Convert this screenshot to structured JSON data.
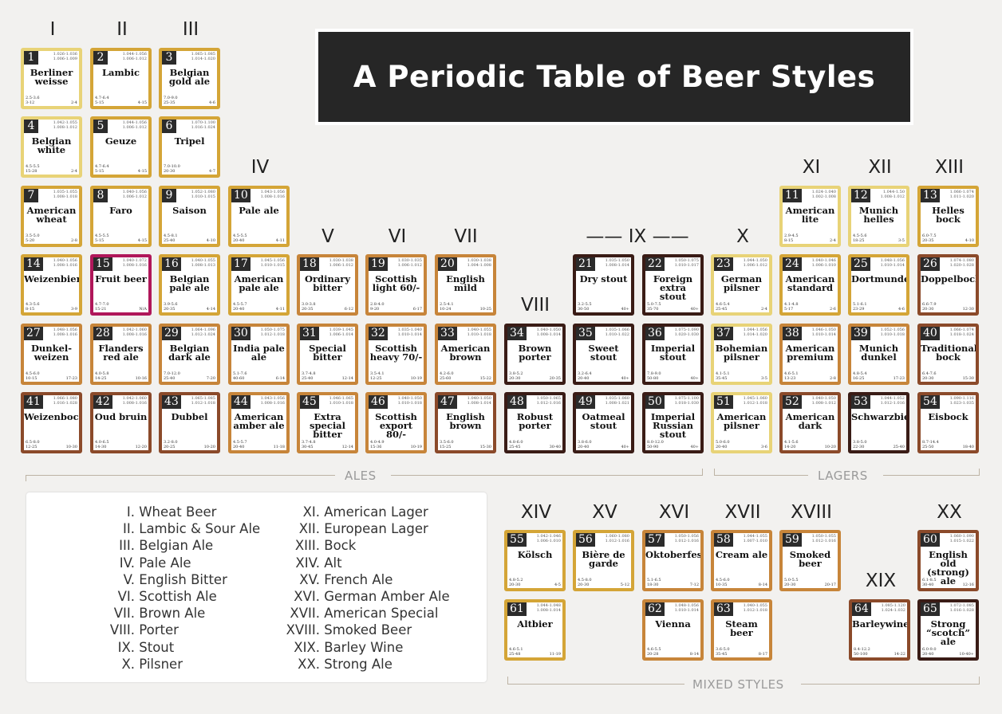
{
  "title": "A Periodic Table of Beer Styles",
  "group_headers": {
    "g1": "I",
    "g2": "II",
    "g3": "III",
    "g4": "IV",
    "g5": "V",
    "g6": "VI",
    "g7": "VII",
    "g8": "VIII",
    "g9": "—— IX ——",
    "g10": "X",
    "g11": "XI",
    "g12": "XII",
    "g13": "XIII",
    "g14": "XIV",
    "g15": "XV",
    "g16": "XVI",
    "g17": "XVII",
    "g18": "XVIII",
    "g19": "XIX",
    "g20": "XX"
  },
  "section_labels": {
    "ales": "ALES",
    "lagers": "LAGERS",
    "mixed": "MIXED STYLES"
  },
  "colors": {
    "pale": "#e8d377",
    "gold": "#d4a537",
    "amber": "#c7853a",
    "brown": "#8b4a2a",
    "dark": "#3a1c16",
    "fruit": "#b0175a"
  },
  "legend": {
    "col1": [
      "I. Wheat Beer",
      "II. Lambic & Sour Ale",
      "III. Belgian Ale",
      "IV. Pale Ale",
      "V. English Bitter",
      "VI. Scottish Ale",
      "VII. Brown Ale",
      "VIII. Porter",
      "IX. Stout",
      "X. Pilsner"
    ],
    "col2": [
      "XI. American Lager",
      "XII. European Lager",
      "XIII. Bock",
      "XIV. Alt",
      "XV. French Ale",
      "XVI. German Amber Ale",
      "XVII. American Special",
      "XVIII. Smoked Beer",
      "XIX. Barley Wine",
      "XX. Strong Ale"
    ]
  },
  "elements": [
    {
      "n": "1",
      "name": "Berliner weisse",
      "og": "1.026-1.036",
      "fg": "1.006-1.009",
      "abv": "2.5-3.6",
      "ibu": "3-12",
      "srm": "2-4",
      "c": "pale"
    },
    {
      "n": "2",
      "name": "Lambic",
      "og": "1.044-1.056",
      "fg": "1.006-1.012",
      "abv": "4.7-6.4",
      "ibu": "5-15",
      "srm": "4-15",
      "c": "gold"
    },
    {
      "n": "3",
      "name": "Belgian gold ale",
      "og": "1.065-1.085",
      "fg": "1.014-1.020",
      "abv": "7.0-9.0",
      "ibu": "25-35",
      "srm": "4-6",
      "c": "gold"
    },
    {
      "n": "4",
      "name": "Belgian white",
      "og": "1.042-1.055",
      "fg": "1.008-1.012",
      "abv": "4.5-5.5",
      "ibu": "15-28",
      "srm": "2-4",
      "c": "pale"
    },
    {
      "n": "5",
      "name": "Geuze",
      "og": "1.044-1.056",
      "fg": "1.006-1.012",
      "abv": "4.7-6.4",
      "ibu": "5-15",
      "srm": "4-15",
      "c": "gold"
    },
    {
      "n": "6",
      "name": "Tripel",
      "og": "1.070-1.100",
      "fg": "1.016-1.024",
      "abv": "7.0-10.0",
      "ibu": "20-30",
      "srm": "4-7",
      "c": "gold"
    },
    {
      "n": "7",
      "name": "American wheat",
      "og": "1.035-1.055",
      "fg": "1.008-1.018",
      "abv": "3.5-5.0",
      "ibu": "5-20",
      "srm": "2-8",
      "c": "gold"
    },
    {
      "n": "8",
      "name": "Faro",
      "og": "1.040-1.056",
      "fg": "1.006-1.012",
      "abv": "4.5-5.5",
      "ibu": "5-15",
      "srm": "4-15",
      "c": "gold"
    },
    {
      "n": "9",
      "name": "Saison",
      "og": "1.052-1.080",
      "fg": "1.010-1.015",
      "abv": "4.5-8.1",
      "ibu": "25-40",
      "srm": "4-10",
      "c": "gold"
    },
    {
      "n": "10",
      "name": "Pale ale",
      "og": "1.043-1.056",
      "fg": "1.008-1.016",
      "abv": "4.5-5.5",
      "ibu": "20-40",
      "srm": "4-11",
      "c": "gold"
    },
    {
      "n": "11",
      "name": "American lite",
      "og": "1.024-1.040",
      "fg": "1.002-1.008",
      "abv": "2.9-4.5",
      "ibu": "8-15",
      "srm": "2-4",
      "c": "pale"
    },
    {
      "n": "12",
      "name": "Munich helles",
      "og": "1.044-1.50",
      "fg": "1.008-1.012",
      "abv": "4.5-5.6",
      "ibu": "18-25",
      "srm": "3-5",
      "c": "pale"
    },
    {
      "n": "13",
      "name": "Helles bock",
      "og": "1.066-1.074",
      "fg": "1.011-1.020",
      "abv": "6.0-7.5",
      "ibu": "20-35",
      "srm": "4-10",
      "c": "gold"
    },
    {
      "n": "14",
      "name": "Weizenbier",
      "og": "1.040-1.056",
      "fg": "1.008-1.016",
      "abv": "4.3-5.6",
      "ibu": "8-15",
      "srm": "3-9",
      "c": "gold"
    },
    {
      "n": "15",
      "name": "Fruit beer",
      "og": "1.040-1.072",
      "fg": "1.008-1.016",
      "abv": "4.7-7.0",
      "ibu": "15-21",
      "srm": "N/A",
      "c": "fruit"
    },
    {
      "n": "16",
      "name": "Belgian pale ale",
      "og": "1.040-1.055",
      "fg": "1.008-1.013",
      "abv": "3.9-5.6",
      "ibu": "20-35",
      "srm": "4-14",
      "c": "gold"
    },
    {
      "n": "17",
      "name": "American pale ale",
      "og": "1.045-1.056",
      "fg": "1.010-1.015",
      "abv": "4.5-5.7",
      "ibu": "20-40",
      "srm": "4-11",
      "c": "gold"
    },
    {
      "n": "18",
      "name": "Ordinary bitter",
      "og": "1.030-1.038",
      "fg": "1.006-1.012",
      "abv": "3.0-3.8",
      "ibu": "20-35",
      "srm": "6-12",
      "c": "amber"
    },
    {
      "n": "19",
      "name": "Scottish light 60/-",
      "og": "1.030-1.035",
      "fg": "1.006-1.012",
      "abv": "2.8-4.0",
      "ibu": "9-20",
      "srm": "6-17",
      "c": "amber"
    },
    {
      "n": "20",
      "name": "English mild",
      "og": "1.030-1.038",
      "fg": "1.004-1.008",
      "abv": "2.5-4.1",
      "ibu": "10-24",
      "srm": "10-25",
      "c": "amber"
    },
    {
      "n": "21",
      "name": "Dry stout",
      "og": "1.035-1.050",
      "fg": "1.008-1.014",
      "abv": "3.2-5.5",
      "ibu": "30-50",
      "srm": "40+",
      "c": "dark"
    },
    {
      "n": "22",
      "name": "Foreign extra stout",
      "og": "1.050-1.075",
      "fg": "1.010-1.017",
      "abv": "5.0-7.5",
      "ibu": "35-70",
      "srm": "40+",
      "c": "dark"
    },
    {
      "n": "23",
      "name": "German pilsner",
      "og": "1.044-1.050",
      "fg": "1.006-1.012",
      "abv": "4.6-5.4",
      "ibu": "25-45",
      "srm": "2-4",
      "c": "pale"
    },
    {
      "n": "24",
      "name": "American standard",
      "og": "1.040-1.046",
      "fg": "1.006-1.010",
      "abv": "4.1-4.8",
      "ibu": "5-17",
      "srm": "2-6",
      "c": "gold"
    },
    {
      "n": "25",
      "name": "Dortmunder",
      "og": "1.048-1.056",
      "fg": "1.010-1.014",
      "abv": "5.1-6.1",
      "ibu": "23-29",
      "srm": "4-6",
      "c": "gold"
    },
    {
      "n": "26",
      "name": "Doppelbock",
      "og": "1.074-1.080",
      "fg": "1.020-1.028",
      "abv": "6.6-7.9",
      "ibu": "20-30",
      "srm": "12-30",
      "c": "brown"
    },
    {
      "n": "27",
      "name": "Dunkel-weizen",
      "og": "1.048-1.056",
      "fg": "1.008-1.016",
      "abv": "4.5-6.0",
      "ibu": "10-15",
      "srm": "17-23",
      "c": "amber"
    },
    {
      "n": "28",
      "name": "Flanders red ale",
      "og": "1.042-1.060",
      "fg": "1.008-1.016",
      "abv": "4.0-5.8",
      "ibu": "14-25",
      "srm": "10-16",
      "c": "amber"
    },
    {
      "n": "29",
      "name": "Belgian dark ale",
      "og": "1.064-1.096",
      "fg": "1.012-1.024",
      "abv": "7.0-12.0",
      "ibu": "25-40",
      "srm": "7-20",
      "c": "amber"
    },
    {
      "n": "30",
      "name": "India pale ale",
      "og": "1.050-1.075",
      "fg": "1.012-1.018",
      "abv": "5.1-7.6",
      "ibu": "40-60",
      "srm": "6-14",
      "c": "amber"
    },
    {
      "n": "31",
      "name": "Special bitter",
      "og": "1.039-1.045",
      "fg": "1.006-1.014",
      "abv": "3.7-4.8",
      "ibu": "25-40",
      "srm": "12-14",
      "c": "amber"
    },
    {
      "n": "32",
      "name": "Scottish heavy 70/-",
      "og": "1.035-1.040",
      "fg": "1.010-1.014",
      "abv": "3.5-4.1",
      "ibu": "12-25",
      "srm": "10-19",
      "c": "amber"
    },
    {
      "n": "33",
      "name": "American brown",
      "og": "1.040-1.055",
      "fg": "1.010-1.018",
      "abv": "4.2-6.0",
      "ibu": "25-60",
      "srm": "15-22",
      "c": "amber"
    },
    {
      "n": "34",
      "name": "Brown porter",
      "og": "1.040-1.050",
      "fg": "1.008-1.014",
      "abv": "3.8-5.2",
      "ibu": "20-30",
      "srm": "20-35",
      "c": "dark"
    },
    {
      "n": "35",
      "name": "Sweet stout",
      "og": "1.035-1.066",
      "fg": "1.010-1.022",
      "abv": "3.2-6.4",
      "ibu": "20-40",
      "srm": "40+",
      "c": "dark"
    },
    {
      "n": "36",
      "name": "Imperial stout",
      "og": "1.075-1.090",
      "fg": "1.020-1.030",
      "abv": "7.8-9.0",
      "ibu": "50-80",
      "srm": "40+",
      "c": "dark"
    },
    {
      "n": "37",
      "name": "Bohemian pilsner",
      "og": "1.044-1.056",
      "fg": "1.014-1.020",
      "abv": "4.1-5.1",
      "ibu": "35-45",
      "srm": "3-5",
      "c": "pale"
    },
    {
      "n": "38",
      "name": "American premium",
      "og": "1.046-1.050",
      "fg": "1.010-1.014",
      "abv": "4.6-5.1",
      "ibu": "13-23",
      "srm": "2-8",
      "c": "amber"
    },
    {
      "n": "39",
      "name": "Munich dunkel",
      "og": "1.052-1.056",
      "fg": "1.010-1.018",
      "abv": "4.8-5.4",
      "ibu": "16-25",
      "srm": "17-23",
      "c": "amber"
    },
    {
      "n": "40",
      "name": "Traditional bock",
      "og": "1.066-1.074",
      "fg": "1.018-1.024",
      "abv": "6.4-7.6",
      "ibu": "20-30",
      "srm": "15-30",
      "c": "brown"
    },
    {
      "n": "41",
      "name": "Weizenbock",
      "og": "1.066-1.080",
      "fg": "1.016-1.028",
      "abv": "6.5-8.0",
      "ibu": "12-25",
      "srm": "10-30",
      "c": "brown"
    },
    {
      "n": "42",
      "name": "Oud bruin",
      "og": "1.042-1.060",
      "fg": "1.008-1.016",
      "abv": "4.0-6.5",
      "ibu": "14-30",
      "srm": "12-20",
      "c": "brown"
    },
    {
      "n": "43",
      "name": "Dubbel",
      "og": "1.065-1.085",
      "fg": "1.012-1.018",
      "abv": "3.2-8.0",
      "ibu": "20-25",
      "srm": "10-20",
      "c": "brown"
    },
    {
      "n": "44",
      "name": "American amber ale",
      "og": "1.043-1.056",
      "fg": "1.008-1.016",
      "abv": "4.5-5.7",
      "ibu": "20-40",
      "srm": "11-18",
      "c": "amber"
    },
    {
      "n": "45",
      "name": "Extra special bitter",
      "og": "1.046-1.065",
      "fg": "1.010-1.018",
      "abv": "3.7-4.8",
      "ibu": "30-45",
      "srm": "12-14",
      "c": "amber"
    },
    {
      "n": "46",
      "name": "Scottish export 80/-",
      "og": "1.040-1.050",
      "fg": "1.010-1.018",
      "abv": "4.0-4.9",
      "ibu": "15-36",
      "srm": "10-19",
      "c": "amber"
    },
    {
      "n": "47",
      "name": "English brown",
      "og": "1.040-1.050",
      "fg": "1.008-1.014",
      "abv": "3.5-6.0",
      "ibu": "15-25",
      "srm": "15-30",
      "c": "brown"
    },
    {
      "n": "48",
      "name": "Robust porter",
      "og": "1.050-1.065",
      "fg": "1.012-1.016",
      "abv": "4.8-6.0",
      "ibu": "25-45",
      "srm": "30-40",
      "c": "dark"
    },
    {
      "n": "49",
      "name": "Oatmeal stout",
      "og": "1.035-1.060",
      "fg": "1.008-1.021",
      "abv": "3.8-6.0",
      "ibu": "20-40",
      "srm": "40+",
      "c": "dark"
    },
    {
      "n": "50",
      "name": "Imperial Russian stout",
      "og": "1.075-1.100",
      "fg": "1.018-1.030",
      "abv": "8.0-12.0",
      "ibu": "50-90",
      "srm": "40+",
      "c": "dark"
    },
    {
      "n": "51",
      "name": "American pilsner",
      "og": "1.045-1.060",
      "fg": "1.012-1.018",
      "abv": "5.0-6.0",
      "ibu": "20-40",
      "srm": "3-6",
      "c": "pale"
    },
    {
      "n": "52",
      "name": "American dark",
      "og": "1.040-1.050",
      "fg": "1.008-1.012",
      "abv": "4.1-5.6",
      "ibu": "14-20",
      "srm": "10-20",
      "c": "brown"
    },
    {
      "n": "53",
      "name": "Schwarzbier",
      "og": "1.044-1.052",
      "fg": "1.012-1.016",
      "abv": "3.8-5.0",
      "ibu": "22-30",
      "srm": "25-40",
      "c": "dark"
    },
    {
      "n": "54",
      "name": "Eisbock",
      "og": "1.090-1.116",
      "fg": "1.023-1.035",
      "abv": "8.7-14.4",
      "ibu": "25-50",
      "srm": "18-40",
      "c": "brown"
    },
    {
      "n": "55",
      "name": "Kölsch",
      "og": "1.042-1.046",
      "fg": "1.006-1.010",
      "abv": "4.8-5.2",
      "ibu": "20-30",
      "srm": "4-5",
      "c": "gold"
    },
    {
      "n": "56",
      "name": "Bière de garde",
      "og": "1.060-1.080",
      "fg": "1.012-1.016",
      "abv": "4.5-8.0",
      "ibu": "20-30",
      "srm": "5-12",
      "c": "gold"
    },
    {
      "n": "57",
      "name": "Oktoberfest",
      "og": "1.050-1.056",
      "fg": "1.012-1.016",
      "abv": "5.1-6.5",
      "ibu": "18-30",
      "srm": "7-12",
      "c": "amber"
    },
    {
      "n": "58",
      "name": "Cream ale",
      "og": "1.044-1.055",
      "fg": "1.007-1.010",
      "abv": "4.5-6.0",
      "ibu": "10-35",
      "srm": "8-14",
      "c": "amber"
    },
    {
      "n": "59",
      "name": "Smoked beer",
      "og": "1.050-1.055",
      "fg": "1.012-1.016",
      "abv": "5.0-5.5",
      "ibu": "20-30",
      "srm": "20-17",
      "c": "amber"
    },
    {
      "n": "60",
      "name": "English old (strong) ale",
      "og": "1.060-1.090",
      "fg": "1.015-1.022",
      "abv": "6.1-8.5",
      "ibu": "30-40",
      "srm": "12-16",
      "c": "brown"
    },
    {
      "n": "61",
      "name": "Altbier",
      "og": "1.044-1.048",
      "fg": "1.008-1.014",
      "abv": "4.6-5.1",
      "ibu": "25-48",
      "srm": "11-19",
      "c": "gold"
    },
    {
      "n": "62",
      "name": "Vienna",
      "og": "1.048-1.056",
      "fg": "1.010-1.014",
      "abv": "4.6-5.5",
      "ibu": "20-28",
      "srm": "8-14",
      "c": "amber"
    },
    {
      "n": "63",
      "name": "Steam beer",
      "og": "1.040-1.055",
      "fg": "1.012-1.018",
      "abv": "3.6-5.0",
      "ibu": "35-45",
      "srm": "8-17",
      "c": "amber"
    },
    {
      "n": "64",
      "name": "Barleywine",
      "og": "1.085-1.120",
      "fg": "1.024-1.032",
      "abv": "8.4-12.2",
      "ibu": "50-100",
      "srm": "14-22",
      "c": "brown"
    },
    {
      "n": "65",
      "name": "Strong “scotch” ale",
      "og": "1.072-1.085",
      "fg": "1.016-1.028",
      "abv": "6.0-9.0",
      "ibu": "20-40",
      "srm": "10-40+",
      "c": "dark"
    }
  ]
}
